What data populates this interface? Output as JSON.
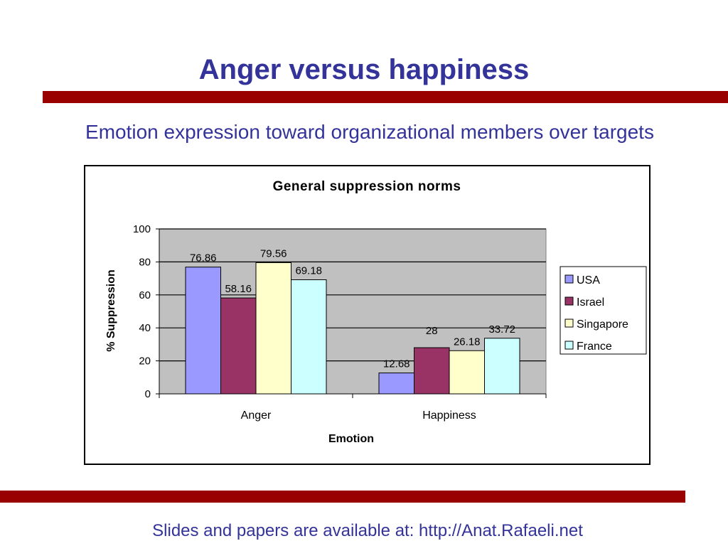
{
  "slide": {
    "title": "Anger versus happiness",
    "subtitle": "Emotion expression toward organizational members over targets",
    "footer": "Slides and papers are available at: http://Anat.Rafaeli.net"
  },
  "colors": {
    "accent_rule": "#990000",
    "text_blue": "#333399",
    "plot_bg": "#C0C0C0"
  },
  "chart_data": {
    "type": "bar",
    "title": "General suppression norms",
    "xlabel": "Emotion",
    "ylabel": "% Suppression",
    "categories": [
      "Anger",
      "Happiness"
    ],
    "ylim": [
      0,
      100
    ],
    "yticks": [
      0,
      20,
      40,
      60,
      80,
      100
    ],
    "grid": true,
    "legend_position": "right",
    "series": [
      {
        "name": "USA",
        "color": "#9999FF",
        "values": [
          76.86,
          12.68
        ]
      },
      {
        "name": "Israel",
        "color": "#993366",
        "values": [
          58.16,
          28
        ]
      },
      {
        "name": "Singapore",
        "color": "#FFFFCC",
        "values": [
          79.56,
          26.18
        ]
      },
      {
        "name": "France",
        "color": "#CCFFFF",
        "values": [
          69.18,
          33.72
        ]
      }
    ]
  }
}
